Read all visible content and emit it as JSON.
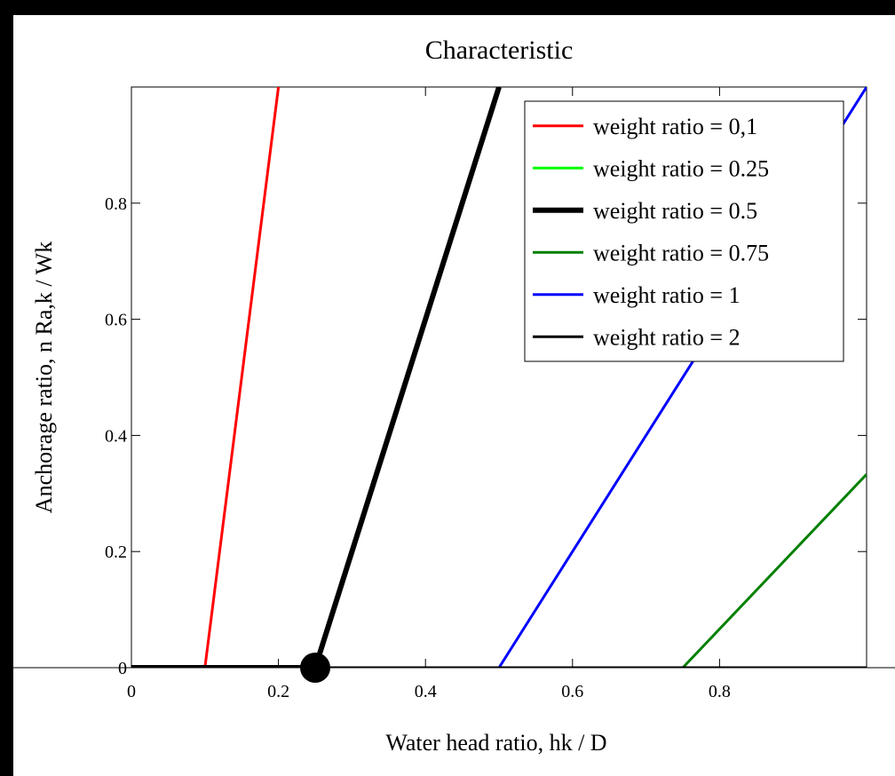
{
  "chart_data": {
    "type": "line",
    "title": "Characteristic",
    "xlabel": "Water head ratio, hk / D",
    "ylabel": "Anchorage ratio, n Ra,k / Wk",
    "xlim": [
      0,
      1
    ],
    "ylim": [
      0,
      1
    ],
    "x_ticks": [
      {
        "value": 0,
        "label": "0"
      },
      {
        "value": 0.2,
        "label": "0.2"
      },
      {
        "value": 0.4,
        "label": "0.4"
      },
      {
        "value": 0.6,
        "label": "0.6"
      },
      {
        "value": 0.8,
        "label": "0.8"
      }
    ],
    "y_ticks": [
      {
        "value": 0,
        "label": "0"
      },
      {
        "value": 0.2,
        "label": "0.2"
      },
      {
        "value": 0.4,
        "label": "0.4"
      },
      {
        "value": 0.6,
        "label": "0.6"
      },
      {
        "value": 0.8,
        "label": "0.8"
      }
    ],
    "grid": false,
    "legend_position": "top-right",
    "series": [
      {
        "name": "weight ratio = 0,1",
        "color": "#ff0000",
        "weight": "normal",
        "points": [
          [
            0,
            0
          ],
          [
            0.1,
            0
          ],
          [
            0.2,
            1
          ]
        ]
      },
      {
        "name": "weight ratio = 0.25",
        "color": "#00ff00",
        "weight": "normal",
        "points": [
          [
            0,
            0
          ],
          [
            0.25,
            0
          ],
          [
            0.5,
            1
          ]
        ]
      },
      {
        "name": "weight ratio = 0.5",
        "color": "#000000",
        "weight": "bold",
        "points": [
          [
            0,
            0
          ],
          [
            0.25,
            0
          ],
          [
            0.5,
            1
          ]
        ]
      },
      {
        "name": "weight ratio = 0.75",
        "color": "#008000",
        "weight": "normal",
        "points": [
          [
            0,
            0
          ],
          [
            0.75,
            0
          ],
          [
            1.0,
            0.333
          ]
        ]
      },
      {
        "name": "weight ratio = 1",
        "color": "#0000ff",
        "weight": "normal",
        "points": [
          [
            0,
            0
          ],
          [
            0.5,
            0
          ],
          [
            1.0,
            1.0
          ]
        ]
      },
      {
        "name": "weight ratio = 2",
        "color": "#000000",
        "weight": "normal",
        "points": [
          [
            0,
            0
          ],
          [
            1.0,
            0
          ]
        ]
      }
    ],
    "marker": {
      "x": 0.25,
      "y": 0,
      "color": "#000000"
    }
  }
}
